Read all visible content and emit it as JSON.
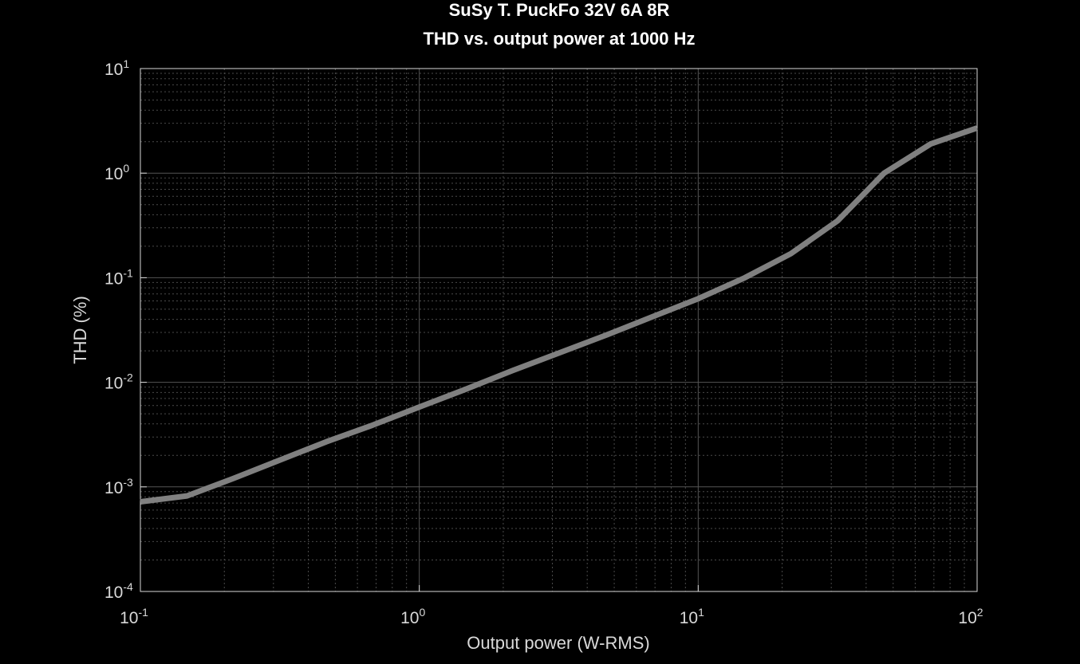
{
  "chart_data": {
    "type": "line",
    "title": "SuSy T. PuckFo 32V 6A 8R",
    "subtitle": "THD vs. output power at 1000 Hz",
    "xlabel": "Output power (W-RMS)",
    "ylabel": "THD (%)",
    "xscale": "log",
    "yscale": "log",
    "xlim": [
      0.1,
      100
    ],
    "ylim": [
      0.0001,
      10
    ],
    "grid": true,
    "x_ticks": [
      {
        "base": "10",
        "exp": "-1",
        "value": 0.1
      },
      {
        "base": "10",
        "exp": "0",
        "value": 1
      },
      {
        "base": "10",
        "exp": "1",
        "value": 10
      },
      {
        "base": "10",
        "exp": "2",
        "value": 100
      }
    ],
    "y_ticks": [
      {
        "base": "10",
        "exp": "1",
        "value": 10
      },
      {
        "base": "10",
        "exp": "0",
        "value": 1
      },
      {
        "base": "10",
        "exp": "-1",
        "value": 0.1
      },
      {
        "base": "10",
        "exp": "-2",
        "value": 0.01
      },
      {
        "base": "10",
        "exp": "-3",
        "value": 0.001
      },
      {
        "base": "10",
        "exp": "-4",
        "value": 0.0001
      }
    ],
    "series": [
      {
        "color": "#808080",
        "x": [
          0.1,
          0.147,
          0.215,
          0.316,
          0.464,
          0.681,
          1.0,
          1.47,
          2.15,
          3.16,
          4.64,
          6.81,
          10.0,
          14.7,
          21.5,
          31.6,
          46.4,
          68.1,
          100.0
        ],
        "y": [
          0.00072,
          0.00082,
          0.0012,
          0.0018,
          0.0027,
          0.0039,
          0.0058,
          0.0086,
          0.0129,
          0.019,
          0.028,
          0.042,
          0.063,
          0.1,
          0.17,
          0.35,
          1.0,
          1.9,
          2.7
        ]
      }
    ]
  }
}
